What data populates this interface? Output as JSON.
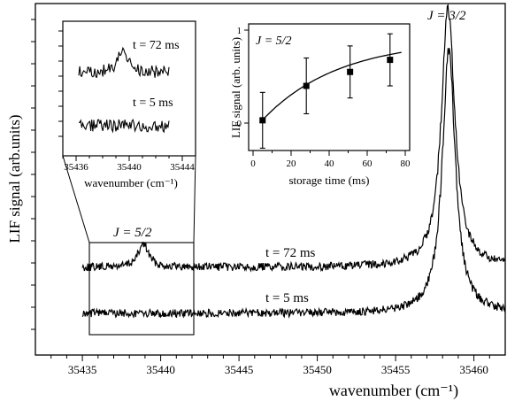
{
  "chart_data": [
    {
      "type": "line",
      "title": "",
      "xlabel": "wavenumber (cm⁻¹)",
      "ylabel": "LIF signal (arb.units)",
      "xlim": [
        35432,
        35462
      ],
      "x_ticks": [
        35435,
        35440,
        35445,
        35450,
        35455,
        35460
      ],
      "y_ticks_labeled": false,
      "grid": false,
      "annotations": [
        {
          "text": "J = 3/2",
          "x": 35458.3
        },
        {
          "text": "J = 5/2",
          "x": 35439
        },
        {
          "text": "t = 72 ms",
          "x": 35450
        },
        {
          "text": "t = 5 ms",
          "x": 35450
        }
      ],
      "zoom_box": {
        "x": [
          35435.8,
          35442.3
        ]
      },
      "series": [
        {
          "name": "t = 72 ms",
          "peaks": [
            {
              "x": 35438.9,
              "height": 0.18,
              "width": 0.4
            },
            {
              "x": 35458.35,
              "height": 2.02,
              "width": 0.52
            }
          ]
        },
        {
          "name": "t = 5 ms",
          "peaks": [
            {
              "x": 35458.4,
              "height": 2.05,
              "width": 0.5
            }
          ]
        }
      ]
    },
    {
      "type": "line",
      "title": "",
      "xlabel": "wavenumber (cm⁻¹)",
      "ylabel": "",
      "xlim": [
        35435,
        35445
      ],
      "x_ticks": [
        35436,
        35440,
        35444
      ],
      "annotations": [
        {
          "text": "t = 72 ms"
        },
        {
          "text": "t = 5 ms"
        }
      ],
      "series": [
        {
          "name": "t = 72 ms",
          "peaks": [
            {
              "x": 35439.5,
              "height": 0.55,
              "width": 0.5
            }
          ]
        },
        {
          "name": "t = 5 ms",
          "peaks": []
        }
      ]
    },
    {
      "type": "scatter",
      "title": "",
      "annotation": "J = 5/2",
      "xlabel": "storage time (ms)",
      "ylabel": "LIF signal (arb. units)",
      "xlim": [
        0,
        80
      ],
      "ylim": [
        -0.3,
        1.0
      ],
      "x_ticks": [
        0,
        20,
        40,
        60,
        80
      ],
      "y_ticks": [
        0,
        1
      ],
      "points": [
        {
          "x": 5,
          "y": 0.03,
          "err": 0.3
        },
        {
          "x": 28,
          "y": 0.4,
          "err": 0.3
        },
        {
          "x": 51,
          "y": 0.55,
          "err": 0.28
        },
        {
          "x": 72,
          "y": 0.68,
          "err": 0.28
        }
      ],
      "fit_curve": {
        "shape": "saturating growth",
        "x_range": [
          5,
          78
        ]
      }
    }
  ]
}
